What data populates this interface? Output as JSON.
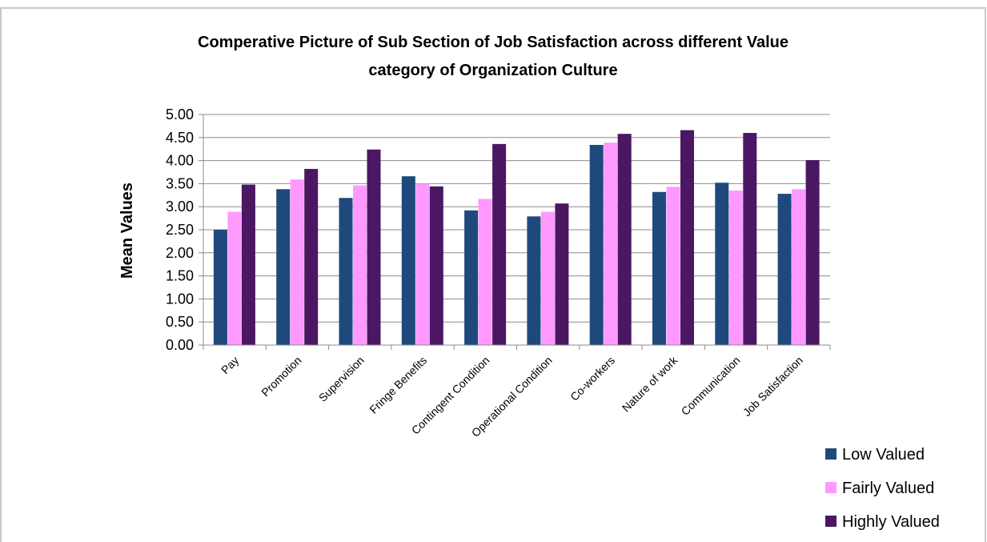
{
  "chart_data": {
    "type": "bar",
    "title_lines": [
      "Comperative Picture of Sub Section of Job Satisfaction across different Value",
      "category of Organization Culture"
    ],
    "xlabel": "",
    "ylabel": "Mean Values",
    "ylim": [
      0,
      5
    ],
    "yticks": [
      "0.00",
      "0.50",
      "1.00",
      "1.50",
      "2.00",
      "2.50",
      "3.00",
      "3.50",
      "4.00",
      "4.50",
      "5.00"
    ],
    "grid": "horizontal",
    "legend_position": "bottom-right",
    "categories": [
      "Pay",
      "Promotion",
      "Supervision",
      "Fringe Benefits",
      "Contingent Condition",
      "Operational Condition",
      "Co-workers",
      "Nature of work",
      "Communication",
      "Job Satisfaction"
    ],
    "series": [
      {
        "name": "Low Valued",
        "color": "#1F497D",
        "values": [
          2.5,
          3.38,
          3.19,
          3.66,
          2.92,
          2.79,
          4.34,
          3.32,
          3.52,
          3.28
        ]
      },
      {
        "name": "Fairly Valued",
        "color": "#FF99FF",
        "values": [
          2.89,
          3.59,
          3.46,
          3.5,
          3.17,
          2.89,
          4.39,
          3.43,
          3.35,
          3.38
        ]
      },
      {
        "name": "Highly Valued",
        "color": "#4B1763",
        "values": [
          3.48,
          3.82,
          4.24,
          3.44,
          4.36,
          3.07,
          4.58,
          4.66,
          4.6,
          4.01
        ]
      }
    ]
  }
}
